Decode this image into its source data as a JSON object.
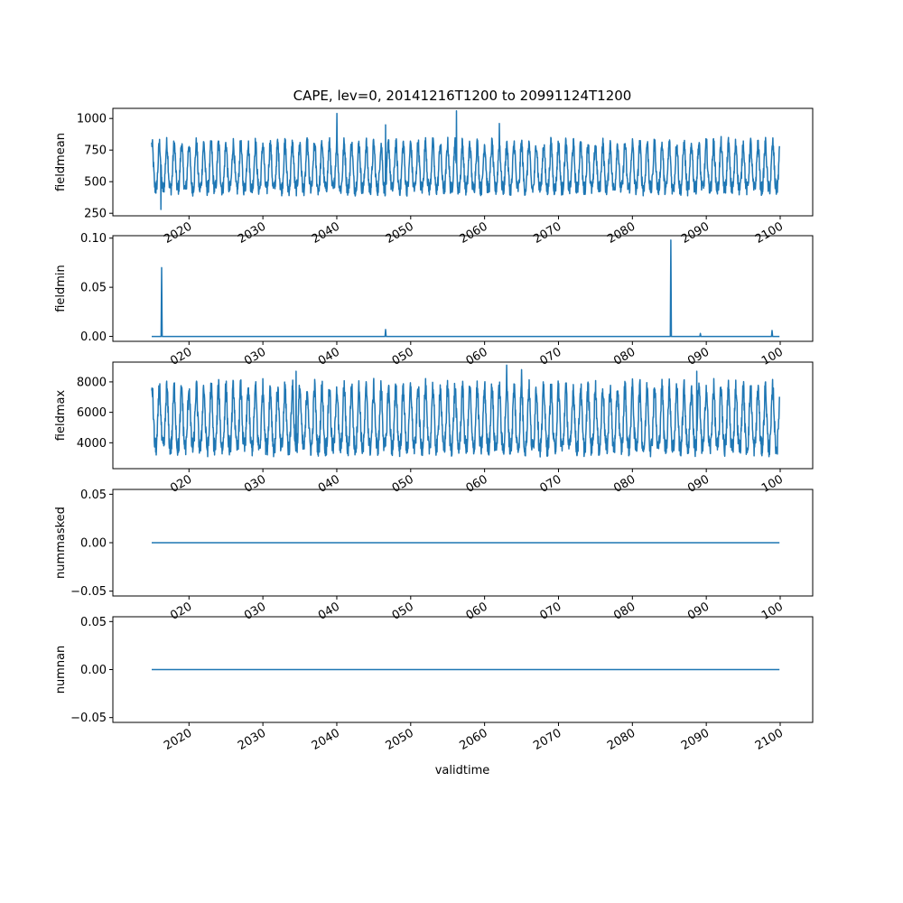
{
  "figure": {
    "title": "CAPE, lev=0, 20141216T1200 to 20991124T1200",
    "xlabel": "validtime",
    "line_color": "#1f77b4"
  },
  "chart_data": [
    {
      "type": "line",
      "ylabel": "fieldmean",
      "xlim": [
        2009.7,
        2104.4
      ],
      "ylim": [
        230,
        1080
      ],
      "x_range": [
        2014.96,
        2099.9
      ],
      "yticks": [
        250,
        500,
        750,
        1000
      ],
      "ytick_labels": [
        "250",
        "500",
        "750",
        "1000"
      ],
      "xticks": [
        2020,
        2030,
        2040,
        2050,
        2060,
        2070,
        2080,
        2090,
        2100
      ],
      "xtick_labels": [
        "2020",
        "2030",
        "2040",
        "2050",
        "2060",
        "2070",
        "2080",
        "2090",
        "2100"
      ],
      "seasonal_cycle": {
        "period_years": 1,
        "low": 380,
        "high": 800
      },
      "spikes": [
        {
          "x": 2040.0,
          "y": 1040
        },
        {
          "x": 2056.2,
          "y": 1060
        },
        {
          "x": 2046.6,
          "y": 950
        },
        {
          "x": 2062.0,
          "y": 960
        },
        {
          "x": 2016.2,
          "y": 280
        }
      ]
    },
    {
      "type": "line",
      "ylabel": "fieldmin",
      "xlim": [
        2009.7,
        2104.4
      ],
      "ylim": [
        -0.005,
        0.1025
      ],
      "x_range": [
        2014.96,
        2099.9
      ],
      "baseline": 0.0,
      "yticks": [
        0.0,
        0.05,
        0.1
      ],
      "ytick_labels": [
        "0.00",
        "0.05",
        "0.10"
      ],
      "xticks": [
        2020,
        2030,
        2040,
        2050,
        2060,
        2070,
        2080,
        2090,
        2100
      ],
      "xtick_labels": [
        "020",
        "030",
        "040",
        "050",
        "060",
        "070",
        "080",
        "090",
        "100"
      ],
      "spikes": [
        {
          "x": 2016.3,
          "y": 0.07
        },
        {
          "x": 2046.6,
          "y": 0.007
        },
        {
          "x": 2085.2,
          "y": 0.098
        },
        {
          "x": 2089.2,
          "y": 0.003
        },
        {
          "x": 2098.9,
          "y": 0.006
        }
      ]
    },
    {
      "type": "line",
      "ylabel": "fieldmax",
      "xlim": [
        2009.7,
        2104.4
      ],
      "ylim": [
        2300,
        9300
      ],
      "x_range": [
        2014.96,
        2099.9
      ],
      "yticks": [
        4000,
        6000,
        8000
      ],
      "ytick_labels": [
        "4000",
        "6000",
        "8000"
      ],
      "xticks": [
        2020,
        2030,
        2040,
        2050,
        2060,
        2070,
        2080,
        2090,
        2100
      ],
      "xtick_labels": [
        "020",
        "030",
        "040",
        "050",
        "060",
        "070",
        "080",
        "090",
        "100"
      ],
      "seasonal_cycle": {
        "period_years": 1,
        "low": 3000,
        "high": 7600
      },
      "spikes": [
        {
          "x": 2063.0,
          "y": 9100
        },
        {
          "x": 2034.5,
          "y": 8700
        },
        {
          "x": 2065.0,
          "y": 8800
        },
        {
          "x": 2088.7,
          "y": 8700
        }
      ]
    },
    {
      "type": "line",
      "ylabel": "nummasked",
      "xlim": [
        2009.7,
        2104.4
      ],
      "ylim": [
        -0.055,
        0.055
      ],
      "x_range": [
        2014.96,
        2099.9
      ],
      "constant": 0.0,
      "yticks": [
        -0.05,
        0.0,
        0.05
      ],
      "ytick_labels": [
        "−0.05",
        "0.00",
        "0.05"
      ],
      "xticks": [
        2020,
        2030,
        2040,
        2050,
        2060,
        2070,
        2080,
        2090,
        2100
      ],
      "xtick_labels": [
        "020",
        "030",
        "040",
        "050",
        "060",
        "070",
        "080",
        "090",
        "100"
      ]
    },
    {
      "type": "line",
      "ylabel": "numnan",
      "xlim": [
        2009.7,
        2104.4
      ],
      "ylim": [
        -0.055,
        0.055
      ],
      "x_range": [
        2014.96,
        2099.9
      ],
      "constant": 0.0,
      "yticks": [
        -0.05,
        0.0,
        0.05
      ],
      "ytick_labels": [
        "−0.05",
        "0.00",
        "0.05"
      ],
      "xticks": [
        2020,
        2030,
        2040,
        2050,
        2060,
        2070,
        2080,
        2090,
        2100
      ],
      "xtick_labels": [
        "2020",
        "2030",
        "2040",
        "2050",
        "2060",
        "2070",
        "2080",
        "2090",
        "2100"
      ]
    }
  ]
}
